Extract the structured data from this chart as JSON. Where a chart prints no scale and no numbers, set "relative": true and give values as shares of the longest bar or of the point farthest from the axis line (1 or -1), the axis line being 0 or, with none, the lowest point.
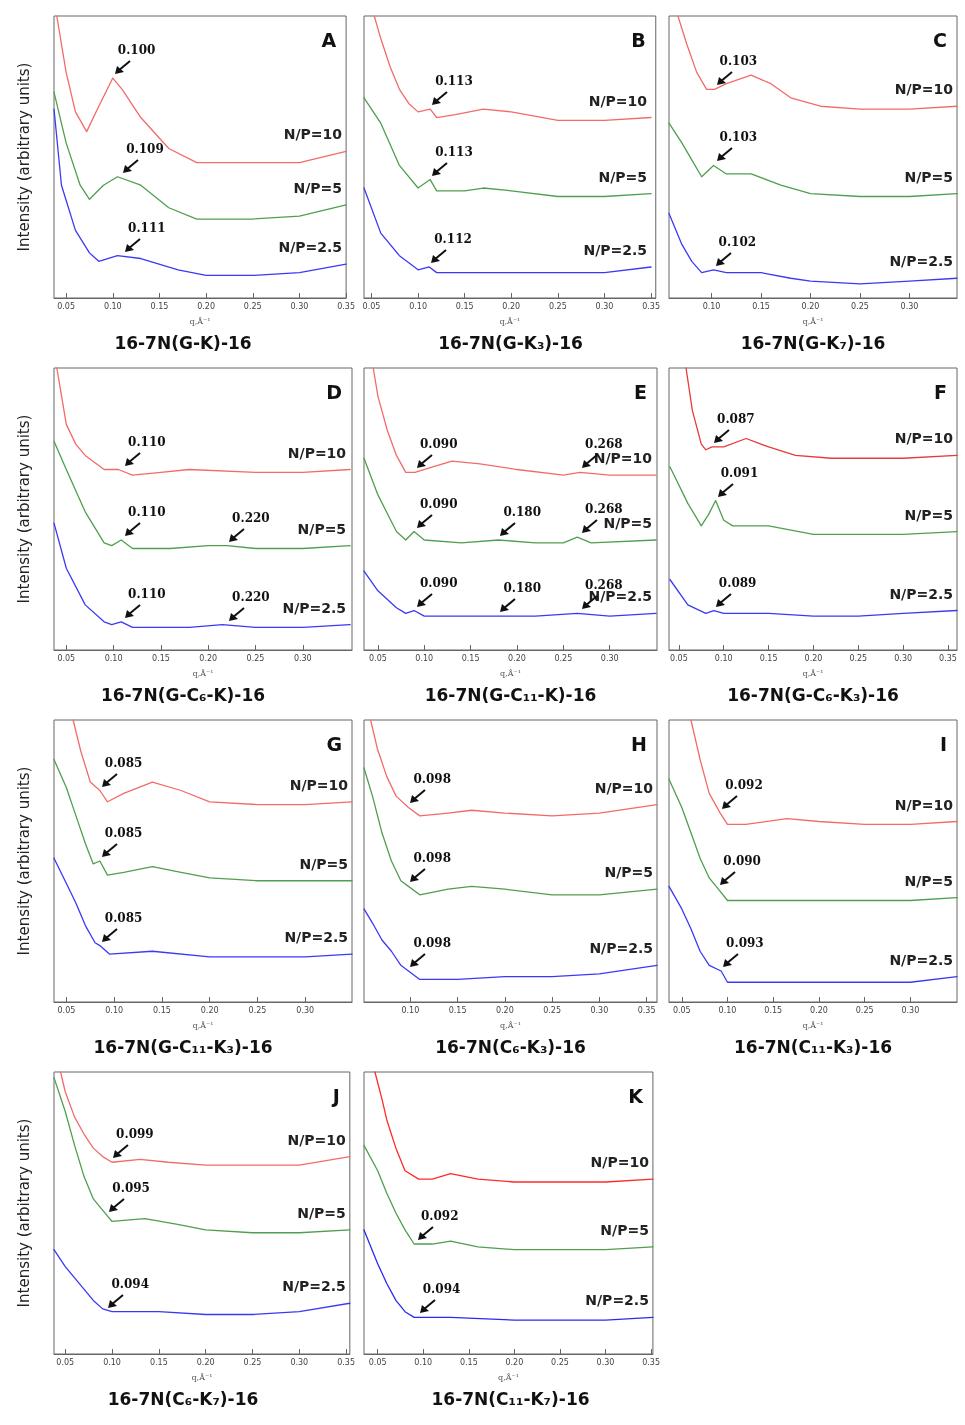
{
  "chart_data": [
    {
      "type": "line",
      "relative": true,
      "title": "16-7N(G-K)-16",
      "xlabel": "q,Å⁻¹",
      "ylabel": "Intensity (arbitrary units)",
      "tick_labels": "x",
      "xlim": [
        0.037,
        0.35
      ],
      "xticks": [
        {
          "value": 0.05,
          "label": "0.05"
        },
        {
          "value": 0.1,
          "label": "0.10"
        },
        {
          "value": 0.15,
          "label": "0.15"
        },
        {
          "value": 0.2,
          "label": "0.20"
        },
        {
          "value": 0.25,
          "label": "0.25"
        },
        {
          "value": 0.3,
          "label": "0.30"
        },
        {
          "value": 0.35,
          "label": "0.35"
        }
      ],
      "series": [
        {
          "name": "N/P=10",
          "color": "#f26b6b",
          "x": [
            0.04,
            0.05,
            0.06,
            0.072,
            0.085,
            0.1,
            0.11,
            0.13,
            0.16,
            0.19,
            0.25,
            0.3,
            0.35
          ],
          "values": [
            1.0,
            0.8,
            0.66,
            0.59,
            0.68,
            0.78,
            0.74,
            0.64,
            0.53,
            0.48,
            0.48,
            0.48,
            0.52
          ]
        },
        {
          "name": "N/P=5",
          "color": "#4f9f4f",
          "x": [
            0.037,
            0.05,
            0.065,
            0.075,
            0.09,
            0.105,
            0.13,
            0.16,
            0.19,
            0.25,
            0.3,
            0.35
          ],
          "values": [
            0.73,
            0.55,
            0.4,
            0.35,
            0.4,
            0.43,
            0.4,
            0.32,
            0.28,
            0.28,
            0.29,
            0.33
          ]
        },
        {
          "name": "N/P=2.5",
          "color": "#3a3af5",
          "x": [
            0.037,
            0.045,
            0.06,
            0.075,
            0.085,
            0.105,
            0.13,
            0.17,
            0.2,
            0.25,
            0.3,
            0.35
          ],
          "values": [
            0.67,
            0.4,
            0.24,
            0.16,
            0.13,
            0.15,
            0.14,
            0.1,
            0.08,
            0.08,
            0.09,
            0.12
          ]
        }
      ],
      "annotations": [
        "A",
        {
          "text": "0.100",
          "x": 0.1,
          "y": 0.78
        },
        {
          "text": "0.109",
          "x": 0.109,
          "y": 0.43
        },
        {
          "text": "0.111",
          "x": 0.111,
          "y": 0.15
        }
      ]
    },
    {
      "type": "line",
      "relative": true,
      "title": "16-7N(G-K₃)-16",
      "xlabel": "q,Å⁻¹",
      "tick_labels": "x",
      "xlim": [
        0.042,
        0.355
      ],
      "xticks": [
        {
          "value": 0.05,
          "label": "0.05"
        },
        {
          "value": 0.1,
          "label": "0.10"
        },
        {
          "value": 0.15,
          "label": "0.15"
        },
        {
          "value": 0.2,
          "label": "0.20"
        },
        {
          "value": 0.25,
          "label": "0.25"
        },
        {
          "value": 0.3,
          "label": "0.30"
        },
        {
          "value": 0.35,
          "label": "0.35"
        }
      ],
      "series": [
        {
          "name": "N/P=10",
          "color": "#f26b6b",
          "x": [
            0.053,
            0.06,
            0.07,
            0.08,
            0.09,
            0.1,
            0.113,
            0.12,
            0.14,
            0.17,
            0.2,
            0.25,
            0.3,
            0.35
          ],
          "values": [
            1.0,
            0.92,
            0.82,
            0.74,
            0.69,
            0.66,
            0.67,
            0.64,
            0.65,
            0.67,
            0.66,
            0.63,
            0.63,
            0.64
          ]
        },
        {
          "name": "N/P=5",
          "color": "#4f9f4f",
          "x": [
            0.042,
            0.06,
            0.08,
            0.1,
            0.113,
            0.12,
            0.15,
            0.17,
            0.2,
            0.25,
            0.3,
            0.35
          ],
          "values": [
            0.71,
            0.62,
            0.47,
            0.39,
            0.42,
            0.38,
            0.38,
            0.39,
            0.38,
            0.36,
            0.36,
            0.37
          ]
        },
        {
          "name": "N/P=2.5",
          "color": "#3a3af5",
          "x": [
            0.042,
            0.06,
            0.08,
            0.1,
            0.112,
            0.12,
            0.2,
            0.25,
            0.3,
            0.35
          ],
          "values": [
            0.39,
            0.23,
            0.15,
            0.1,
            0.11,
            0.09,
            0.09,
            0.09,
            0.09,
            0.11
          ]
        }
      ],
      "annotations": [
        "B",
        {
          "text": "0.113",
          "x": 0.113,
          "y": 0.67
        },
        {
          "text": "0.113",
          "x": 0.113,
          "y": 0.42
        },
        {
          "text": "0.112",
          "x": 0.112,
          "y": 0.11
        }
      ]
    },
    {
      "type": "line",
      "relative": true,
      "title": "16-7N(G-K₇)-16",
      "xlabel": "q,Å⁻¹",
      "tick_labels": "x",
      "xlim": [
        0.057,
        0.348
      ],
      "xticks": [
        {
          "value": 0.1,
          "label": "0.10"
        },
        {
          "value": 0.15,
          "label": "0.15"
        },
        {
          "value": 0.2,
          "label": "0.20"
        },
        {
          "value": 0.25,
          "label": "0.25"
        },
        {
          "value": 0.3,
          "label": "0.30"
        }
      ],
      "series": [
        {
          "name": "N/P=10",
          "color": "#f26b6b",
          "x": [
            0.066,
            0.075,
            0.085,
            0.095,
            0.103,
            0.115,
            0.14,
            0.16,
            0.18,
            0.21,
            0.25,
            0.3,
            0.348
          ],
          "values": [
            1.0,
            0.9,
            0.8,
            0.74,
            0.74,
            0.76,
            0.79,
            0.76,
            0.71,
            0.68,
            0.67,
            0.67,
            0.68
          ]
        },
        {
          "name": "N/P=5",
          "color": "#4f9f4f",
          "x": [
            0.057,
            0.07,
            0.08,
            0.09,
            0.102,
            0.115,
            0.14,
            0.17,
            0.2,
            0.25,
            0.3,
            0.348
          ],
          "values": [
            0.62,
            0.55,
            0.49,
            0.43,
            0.47,
            0.44,
            0.44,
            0.4,
            0.37,
            0.36,
            0.36,
            0.37
          ]
        },
        {
          "name": "N/P=2.5",
          "color": "#3a3af5",
          "x": [
            0.057,
            0.07,
            0.08,
            0.09,
            0.102,
            0.115,
            0.15,
            0.18,
            0.2,
            0.25,
            0.3,
            0.348
          ],
          "values": [
            0.3,
            0.19,
            0.13,
            0.09,
            0.1,
            0.09,
            0.09,
            0.07,
            0.06,
            0.05,
            0.06,
            0.07
          ]
        }
      ],
      "annotations": [
        "C",
        {
          "text": "0.103",
          "x": 0.103,
          "y": 0.74
        },
        {
          "text": "0.103",
          "x": 0.103,
          "y": 0.47
        },
        {
          "text": "0.102",
          "x": 0.102,
          "y": 0.1
        }
      ]
    },
    {
      "type": "line",
      "relative": true,
      "title": "16-7N(G-C₆-K)-16",
      "xlabel": "q,Å⁻¹",
      "ylabel": "Intensity (arbitrary units)",
      "tick_labels": "x",
      "xlim": [
        0.037,
        0.352
      ],
      "xticks": [
        {
          "value": 0.05,
          "label": "0.05"
        },
        {
          "value": 0.1,
          "label": "0.10"
        },
        {
          "value": 0.15,
          "label": "0.15"
        },
        {
          "value": 0.2,
          "label": "0.20"
        },
        {
          "value": 0.25,
          "label": "0.25"
        },
        {
          "value": 0.3,
          "label": "0.30"
        }
      ],
      "series": [
        {
          "name": "N/P=10",
          "color": "#f26b6b",
          "x": [
            0.04,
            0.045,
            0.05,
            0.06,
            0.07,
            0.09,
            0.105,
            0.12,
            0.15,
            0.18,
            0.25,
            0.3,
            0.35
          ],
          "values": [
            1.0,
            0.9,
            0.8,
            0.73,
            0.69,
            0.64,
            0.64,
            0.62,
            0.63,
            0.64,
            0.63,
            0.63,
            0.64
          ]
        },
        {
          "name": "N/P=5",
          "color": "#4f9f4f",
          "x": [
            0.037,
            0.05,
            0.07,
            0.09,
            0.098,
            0.108,
            0.12,
            0.16,
            0.2,
            0.22,
            0.25,
            0.3,
            0.35
          ],
          "values": [
            0.74,
            0.64,
            0.49,
            0.38,
            0.37,
            0.39,
            0.36,
            0.36,
            0.37,
            0.37,
            0.36,
            0.36,
            0.37
          ]
        },
        {
          "name": "N/P=2.5",
          "color": "#3a3af5",
          "x": [
            0.037,
            0.05,
            0.07,
            0.09,
            0.098,
            0.108,
            0.12,
            0.18,
            0.215,
            0.25,
            0.3,
            0.35
          ],
          "values": [
            0.45,
            0.29,
            0.16,
            0.1,
            0.09,
            0.1,
            0.08,
            0.08,
            0.09,
            0.08,
            0.08,
            0.09
          ]
        }
      ],
      "annotations": [
        "D",
        {
          "text": "0.110",
          "x": 0.11,
          "y": 0.64
        },
        {
          "text": "0.110",
          "x": 0.11,
          "y": 0.39
        },
        {
          "text": "0.220",
          "x": 0.22,
          "y": 0.37
        },
        {
          "text": "0.110",
          "x": 0.11,
          "y": 0.1
        },
        {
          "text": "0.220",
          "x": 0.22,
          "y": 0.09
        }
      ]
    },
    {
      "type": "line",
      "relative": true,
      "title": "16-7N(G-C₁₁-K)-16",
      "xlabel": "q,Å⁻¹",
      "tick_labels": "x",
      "xlim": [
        0.035,
        0.351
      ],
      "xticks": [
        {
          "value": 0.05,
          "label": "0.05"
        },
        {
          "value": 0.1,
          "label": "0.10"
        },
        {
          "value": 0.15,
          "label": "0.15"
        },
        {
          "value": 0.2,
          "label": "0.20"
        },
        {
          "value": 0.25,
          "label": "0.25"
        },
        {
          "value": 0.3,
          "label": "0.30"
        }
      ],
      "series": [
        {
          "name": "N/P=10",
          "color": "#f26b6b",
          "x": [
            0.045,
            0.05,
            0.06,
            0.07,
            0.08,
            0.09,
            0.11,
            0.13,
            0.16,
            0.2,
            0.25,
            0.268,
            0.3,
            0.35
          ],
          "values": [
            1.0,
            0.9,
            0.78,
            0.69,
            0.63,
            0.63,
            0.65,
            0.67,
            0.66,
            0.64,
            0.62,
            0.63,
            0.62,
            0.62
          ]
        },
        {
          "name": "N/P=5",
          "color": "#4f9f4f",
          "x": [
            0.035,
            0.05,
            0.07,
            0.08,
            0.089,
            0.1,
            0.14,
            0.18,
            0.22,
            0.25,
            0.265,
            0.28,
            0.35
          ],
          "values": [
            0.68,
            0.55,
            0.42,
            0.39,
            0.42,
            0.39,
            0.38,
            0.39,
            0.38,
            0.38,
            0.4,
            0.38,
            0.39
          ]
        },
        {
          "name": "N/P=2.5",
          "color": "#3a3af5",
          "x": [
            0.035,
            0.05,
            0.07,
            0.08,
            0.089,
            0.1,
            0.14,
            0.18,
            0.22,
            0.265,
            0.3,
            0.35
          ],
          "values": [
            0.28,
            0.21,
            0.15,
            0.13,
            0.14,
            0.12,
            0.12,
            0.12,
            0.12,
            0.13,
            0.12,
            0.13
          ]
        }
      ],
      "annotations": [
        "E",
        {
          "text": "0.090",
          "x": 0.09,
          "y": 0.63
        },
        {
          "text": "0.268",
          "x": 0.268,
          "y": 0.63
        },
        {
          "text": "0.090",
          "x": 0.09,
          "y": 0.42
        },
        {
          "text": "0.180",
          "x": 0.18,
          "y": 0.39
        },
        {
          "text": "0.268",
          "x": 0.268,
          "y": 0.4
        },
        {
          "text": "0.090",
          "x": 0.09,
          "y": 0.14
        },
        {
          "text": "0.180",
          "x": 0.18,
          "y": 0.12
        },
        {
          "text": "0.268",
          "x": 0.268,
          "y": 0.13
        }
      ]
    },
    {
      "type": "line",
      "relative": true,
      "title": "16-7N(G-C₆-K₃)-16",
      "xlabel": "q,Å⁻¹",
      "tick_labels": "x",
      "xlim": [
        0.039,
        0.36
      ],
      "xticks": [
        {
          "value": 0.05,
          "label": "0.05"
        },
        {
          "value": 0.1,
          "label": "0.10"
        },
        {
          "value": 0.15,
          "label": "0.15"
        },
        {
          "value": 0.2,
          "label": "0.20"
        },
        {
          "value": 0.25,
          "label": "0.25"
        },
        {
          "value": 0.3,
          "label": "0.30"
        },
        {
          "value": 0.35,
          "label": "0.35"
        }
      ],
      "series": [
        {
          "name": "N/P=10",
          "color": "#e83a3a",
          "x": [
            0.058,
            0.065,
            0.075,
            0.08,
            0.087,
            0.1,
            0.125,
            0.15,
            0.18,
            0.22,
            0.3,
            0.36
          ],
          "values": [
            1.0,
            0.85,
            0.73,
            0.71,
            0.72,
            0.72,
            0.75,
            0.72,
            0.69,
            0.68,
            0.68,
            0.69
          ]
        },
        {
          "name": "N/P=5",
          "color": "#4f9f4f",
          "x": [
            0.04,
            0.06,
            0.075,
            0.083,
            0.091,
            0.1,
            0.11,
            0.15,
            0.2,
            0.25,
            0.3,
            0.36
          ],
          "values": [
            0.65,
            0.52,
            0.44,
            0.48,
            0.53,
            0.46,
            0.44,
            0.44,
            0.41,
            0.41,
            0.41,
            0.42
          ]
        },
        {
          "name": "N/P=2.5",
          "color": "#3a3af5",
          "x": [
            0.04,
            0.06,
            0.08,
            0.089,
            0.1,
            0.15,
            0.2,
            0.25,
            0.3,
            0.36
          ],
          "values": [
            0.25,
            0.16,
            0.13,
            0.14,
            0.13,
            0.13,
            0.12,
            0.12,
            0.13,
            0.14
          ]
        }
      ],
      "annotations": [
        "F",
        {
          "text": "0.087",
          "x": 0.087,
          "y": 0.72
        },
        {
          "text": "0.091",
          "x": 0.091,
          "y": 0.53
        },
        {
          "text": "0.089",
          "x": 0.089,
          "y": 0.14
        }
      ]
    },
    {
      "type": "line",
      "relative": true,
      "title": "16-7N(G-C₁₁-K₃)-16",
      "xlabel": "q,Å⁻¹",
      "ylabel": "Intensity (arbitrary units)",
      "tick_labels": "x",
      "xlim": [
        0.037,
        0.349
      ],
      "xticks": [
        {
          "value": 0.05,
          "label": "0.05"
        },
        {
          "value": 0.1,
          "label": "0.10"
        },
        {
          "value": 0.15,
          "label": "0.15"
        },
        {
          "value": 0.2,
          "label": "0.20"
        },
        {
          "value": 0.25,
          "label": "0.25"
        },
        {
          "value": 0.3,
          "label": "0.30"
        }
      ],
      "series": [
        {
          "name": "N/P=10",
          "color": "#f26b6b",
          "x": [
            0.057,
            0.065,
            0.075,
            0.085,
            0.093,
            0.11,
            0.14,
            0.17,
            0.2,
            0.25,
            0.3,
            0.349
          ],
          "values": [
            1.0,
            0.89,
            0.78,
            0.75,
            0.71,
            0.74,
            0.78,
            0.75,
            0.71,
            0.7,
            0.7,
            0.71
          ]
        },
        {
          "name": "N/P=5",
          "color": "#4f9f4f",
          "x": [
            0.037,
            0.05,
            0.06,
            0.07,
            0.078,
            0.085,
            0.093,
            0.11,
            0.14,
            0.17,
            0.2,
            0.25,
            0.349
          ],
          "values": [
            0.86,
            0.76,
            0.66,
            0.56,
            0.49,
            0.5,
            0.45,
            0.46,
            0.48,
            0.46,
            0.44,
            0.43,
            0.43
          ]
        },
        {
          "name": "N/P=2.5",
          "color": "#3a3af5",
          "x": [
            0.037,
            0.05,
            0.06,
            0.07,
            0.08,
            0.085,
            0.095,
            0.14,
            0.2,
            0.25,
            0.3,
            0.349
          ],
          "values": [
            0.51,
            0.42,
            0.35,
            0.27,
            0.21,
            0.2,
            0.17,
            0.18,
            0.16,
            0.16,
            0.16,
            0.17
          ]
        }
      ],
      "annotations": [
        "G",
        {
          "text": "0.085",
          "x": 0.085,
          "y": 0.75
        },
        {
          "text": "0.085",
          "x": 0.085,
          "y": 0.5
        },
        {
          "text": "0.085",
          "x": 0.085,
          "y": 0.2
        }
      ]
    },
    {
      "type": "line",
      "relative": true,
      "title": "16-7N(C₆-K₃)-16",
      "xlabel": "q,Å⁻¹",
      "tick_labels": "x",
      "xlim": [
        0.051,
        0.361
      ],
      "xticks": [
        {
          "value": 0.1,
          "label": "0.10"
        },
        {
          "value": 0.15,
          "label": "0.15"
        },
        {
          "value": 0.2,
          "label": "0.20"
        },
        {
          "value": 0.25,
          "label": "0.25"
        },
        {
          "value": 0.3,
          "label": "0.30"
        },
        {
          "value": 0.35,
          "label": "0.35"
        }
      ],
      "series": [
        {
          "name": "N/P=10",
          "color": "#f26b6b",
          "x": [
            0.058,
            0.065,
            0.075,
            0.085,
            0.098,
            0.11,
            0.14,
            0.165,
            0.2,
            0.25,
            0.3,
            0.361
          ],
          "values": [
            1.0,
            0.9,
            0.8,
            0.73,
            0.69,
            0.66,
            0.67,
            0.68,
            0.67,
            0.66,
            0.67,
            0.7
          ]
        },
        {
          "name": "N/P=5",
          "color": "#4f9f4f",
          "x": [
            0.051,
            0.06,
            0.07,
            0.08,
            0.09,
            0.098,
            0.11,
            0.14,
            0.165,
            0.2,
            0.25,
            0.3,
            0.361
          ],
          "values": [
            0.83,
            0.73,
            0.6,
            0.5,
            0.43,
            0.41,
            0.38,
            0.4,
            0.41,
            0.4,
            0.38,
            0.38,
            0.4
          ]
        },
        {
          "name": "N/P=2.5",
          "color": "#3a3af5",
          "x": [
            0.051,
            0.06,
            0.07,
            0.08,
            0.09,
            0.098,
            0.11,
            0.15,
            0.2,
            0.25,
            0.3,
            0.361
          ],
          "values": [
            0.33,
            0.28,
            0.22,
            0.18,
            0.13,
            0.11,
            0.08,
            0.08,
            0.09,
            0.09,
            0.1,
            0.13
          ]
        }
      ],
      "annotations": [
        "H",
        {
          "text": "0.098",
          "x": 0.098,
          "y": 0.69
        },
        {
          "text": "0.098",
          "x": 0.098,
          "y": 0.41
        },
        {
          "text": "0.098",
          "x": 0.098,
          "y": 0.11
        }
      ]
    },
    {
      "type": "line",
      "relative": true,
      "title": "16-7N(C₁₁-K₃)-16",
      "xlabel": "q,Å⁻¹",
      "tick_labels": "x",
      "xlim": [
        0.036,
        0.351
      ],
      "xticks": [
        {
          "value": 0.05,
          "label": "0.05"
        },
        {
          "value": 0.1,
          "label": "0.10"
        },
        {
          "value": 0.15,
          "label": "0.15"
        },
        {
          "value": 0.2,
          "label": "0.20"
        },
        {
          "value": 0.25,
          "label": "0.25"
        },
        {
          "value": 0.3,
          "label": "0.30"
        }
      ],
      "series": [
        {
          "name": "N/P=10",
          "color": "#f26b6b",
          "x": [
            0.06,
            0.07,
            0.08,
            0.092,
            0.1,
            0.12,
            0.165,
            0.2,
            0.25,
            0.3,
            0.351
          ],
          "values": [
            1.0,
            0.86,
            0.74,
            0.67,
            0.63,
            0.63,
            0.65,
            0.64,
            0.63,
            0.63,
            0.64
          ]
        },
        {
          "name": "N/P=5",
          "color": "#4f9f4f",
          "x": [
            0.036,
            0.05,
            0.06,
            0.07,
            0.08,
            0.09,
            0.1,
            0.15,
            0.2,
            0.25,
            0.3,
            0.351
          ],
          "values": [
            0.79,
            0.69,
            0.6,
            0.51,
            0.44,
            0.4,
            0.36,
            0.36,
            0.36,
            0.36,
            0.36,
            0.37
          ]
        },
        {
          "name": "N/P=2.5",
          "color": "#3a3af5",
          "x": [
            0.036,
            0.05,
            0.06,
            0.07,
            0.08,
            0.093,
            0.1,
            0.15,
            0.2,
            0.25,
            0.3,
            0.351
          ],
          "values": [
            0.41,
            0.33,
            0.26,
            0.18,
            0.13,
            0.11,
            0.07,
            0.07,
            0.07,
            0.07,
            0.07,
            0.09
          ]
        }
      ],
      "annotations": [
        "I",
        {
          "text": "0.092",
          "x": 0.092,
          "y": 0.67
        },
        {
          "text": "0.090",
          "x": 0.09,
          "y": 0.4
        },
        {
          "text": "0.093",
          "x": 0.093,
          "y": 0.11
        }
      ]
    },
    {
      "type": "line",
      "relative": true,
      "title": "16-7N(C₆-K₇)-16",
      "xlabel": "q,Å⁻¹",
      "ylabel": "Intensity (arbitrary units)",
      "tick_labels": "x",
      "xlim": [
        0.038,
        0.354
      ],
      "xticks": [
        {
          "value": 0.05,
          "label": "0.05"
        },
        {
          "value": 0.1,
          "label": "0.10"
        },
        {
          "value": 0.15,
          "label": "0.15"
        },
        {
          "value": 0.2,
          "label": "0.20"
        },
        {
          "value": 0.25,
          "label": "0.25"
        },
        {
          "value": 0.3,
          "label": "0.30"
        },
        {
          "value": 0.35,
          "label": "0.35"
        }
      ],
      "series": [
        {
          "name": "N/P=10",
          "color": "#f26b6b",
          "x": [
            0.045,
            0.05,
            0.06,
            0.07,
            0.08,
            0.09,
            0.1,
            0.13,
            0.16,
            0.2,
            0.25,
            0.3,
            0.354
          ],
          "values": [
            1.0,
            0.93,
            0.84,
            0.78,
            0.73,
            0.7,
            0.68,
            0.69,
            0.68,
            0.67,
            0.67,
            0.67,
            0.7
          ]
        },
        {
          "name": "N/P=5",
          "color": "#4f9f4f",
          "x": [
            0.038,
            0.05,
            0.06,
            0.07,
            0.08,
            0.095,
            0.1,
            0.135,
            0.17,
            0.2,
            0.25,
            0.3,
            0.354
          ],
          "values": [
            0.98,
            0.86,
            0.74,
            0.63,
            0.55,
            0.49,
            0.47,
            0.48,
            0.46,
            0.44,
            0.43,
            0.43,
            0.44
          ]
        },
        {
          "name": "N/P=2.5",
          "color": "#3a3af5",
          "x": [
            0.038,
            0.05,
            0.06,
            0.07,
            0.08,
            0.09,
            0.1,
            0.15,
            0.2,
            0.25,
            0.3,
            0.354
          ],
          "values": [
            0.37,
            0.31,
            0.27,
            0.23,
            0.19,
            0.16,
            0.15,
            0.15,
            0.14,
            0.14,
            0.15,
            0.18
          ]
        }
      ],
      "annotations": [
        "J",
        {
          "text": "0.099",
          "x": 0.099,
          "y": 0.68
        },
        {
          "text": "0.095",
          "x": 0.095,
          "y": 0.49
        },
        {
          "text": "0.094",
          "x": 0.094,
          "y": 0.15
        }
      ]
    },
    {
      "type": "line",
      "relative": true,
      "title": "16-7N(C₁₁-K₇)-16",
      "xlabel": "q,Å⁻¹",
      "tick_labels": "x",
      "xlim": [
        0.035,
        0.352
      ],
      "xticks": [
        {
          "value": 0.05,
          "label": "0.05"
        },
        {
          "value": 0.1,
          "label": "0.10"
        },
        {
          "value": 0.15,
          "label": "0.15"
        },
        {
          "value": 0.2,
          "label": "0.20"
        },
        {
          "value": 0.25,
          "label": "0.25"
        },
        {
          "value": 0.3,
          "label": "0.30"
        },
        {
          "value": 0.35,
          "label": "0.35"
        }
      ],
      "series": [
        {
          "name": "N/P=10",
          "color": "#ff2a2a",
          "x": [
            0.047,
            0.055,
            0.06,
            0.07,
            0.08,
            0.095,
            0.11,
            0.13,
            0.16,
            0.2,
            0.25,
            0.3,
            0.352
          ],
          "values": [
            1.0,
            0.9,
            0.83,
            0.73,
            0.65,
            0.62,
            0.62,
            0.64,
            0.62,
            0.61,
            0.61,
            0.61,
            0.62
          ]
        },
        {
          "name": "N/P=5",
          "color": "#4f9f4f",
          "x": [
            0.035,
            0.05,
            0.06,
            0.07,
            0.08,
            0.09,
            0.095,
            0.11,
            0.13,
            0.16,
            0.2,
            0.25,
            0.3,
            0.352
          ],
          "values": [
            0.74,
            0.65,
            0.57,
            0.5,
            0.44,
            0.39,
            0.39,
            0.39,
            0.4,
            0.38,
            0.37,
            0.37,
            0.37,
            0.38
          ]
        },
        {
          "name": "N/P=2.5",
          "color": "#2a2af5",
          "x": [
            0.035,
            0.05,
            0.06,
            0.07,
            0.08,
            0.09,
            0.1,
            0.13,
            0.2,
            0.25,
            0.3,
            0.352
          ],
          "values": [
            0.44,
            0.32,
            0.25,
            0.19,
            0.15,
            0.13,
            0.13,
            0.13,
            0.12,
            0.12,
            0.12,
            0.13
          ]
        }
      ],
      "annotations": [
        "K",
        {
          "text": "0.092",
          "x": 0.092,
          "y": 0.39
        },
        {
          "text": "0.094",
          "x": 0.094,
          "y": 0.13
        }
      ]
    }
  ]
}
